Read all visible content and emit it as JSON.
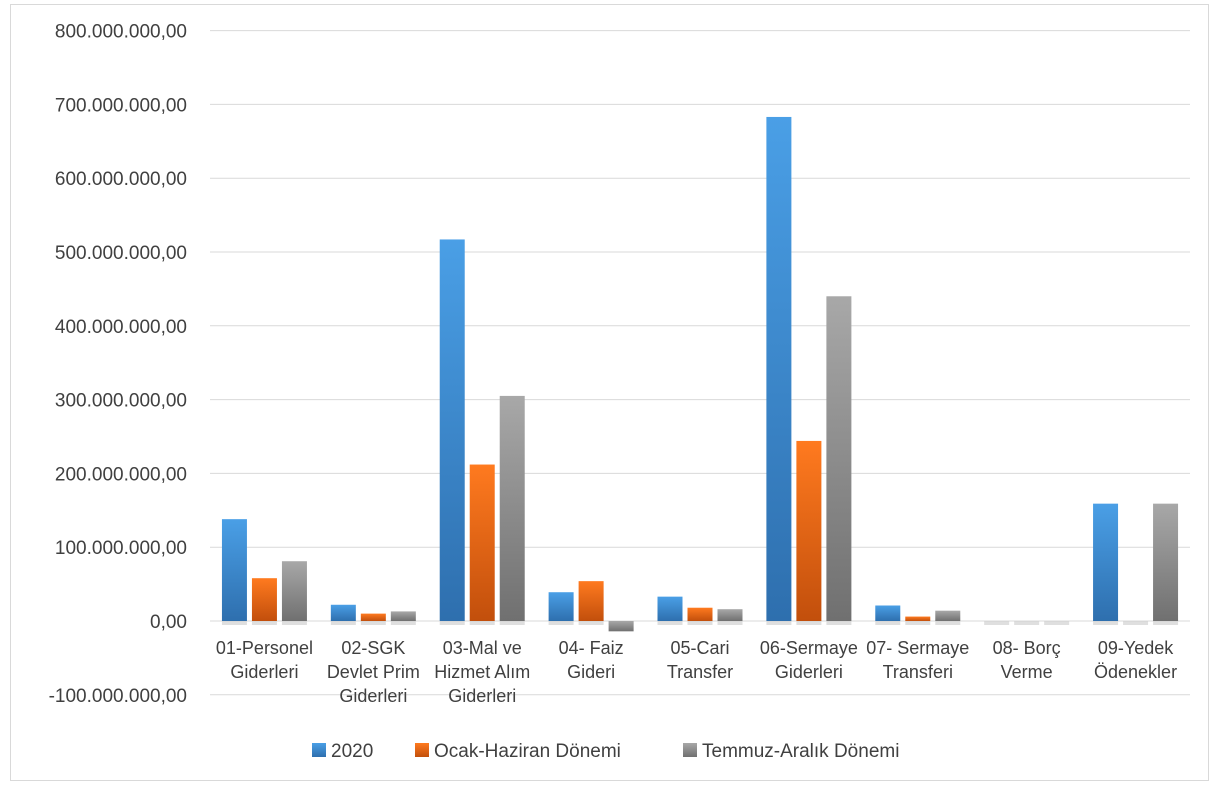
{
  "chart_data": {
    "type": "bar",
    "title": "",
    "xlabel": "",
    "ylabel": "",
    "ylim": [
      -100000000,
      800000000
    ],
    "yticks": [
      "800.000.000,00",
      "700.000.000,00",
      "600.000.000,00",
      "500.000.000,00",
      "400.000.000,00",
      "300.000.000,00",
      "200.000.000,00",
      "100.000.000,00",
      "0,00",
      "-100.000.000,00"
    ],
    "ytick_values": [
      800000000,
      700000000,
      600000000,
      500000000,
      400000000,
      300000000,
      200000000,
      100000000,
      0,
      -100000000
    ],
    "categories": [
      [
        "01-Personel",
        "Giderleri"
      ],
      [
        "02-SGK",
        "Devlet Prim",
        "Giderleri"
      ],
      [
        "03-Mal ve",
        "Hizmet Alım",
        "Giderleri"
      ],
      [
        "04- Faiz",
        "Gideri"
      ],
      [
        "05-Cari",
        "Transfer"
      ],
      [
        "06-Sermaye",
        "Giderleri"
      ],
      [
        "07- Sermaye",
        "Transferi"
      ],
      [
        "08- Borç",
        "Verme"
      ],
      [
        "09-Yedek",
        "Ödenekler"
      ]
    ],
    "series": [
      {
        "name": "2020",
        "color": "#3f8fd6",
        "values": [
          138000000,
          22000000,
          517000000,
          39000000,
          33000000,
          683000000,
          21000000,
          0,
          159000000
        ]
      },
      {
        "name": "Ocak-Haziran Dönemi",
        "color": "#f36b16",
        "values": [
          58000000,
          10000000,
          212000000,
          54000000,
          18000000,
          244000000,
          6000000,
          0,
          0
        ]
      },
      {
        "name": "Temmuz-Aralık Dönemi",
        "color": "#959595",
        "values": [
          81000000,
          13000000,
          305000000,
          -14000000,
          16000000,
          440000000,
          14000000,
          0,
          159000000
        ]
      }
    ],
    "grid": true,
    "legend_position": "bottom"
  }
}
